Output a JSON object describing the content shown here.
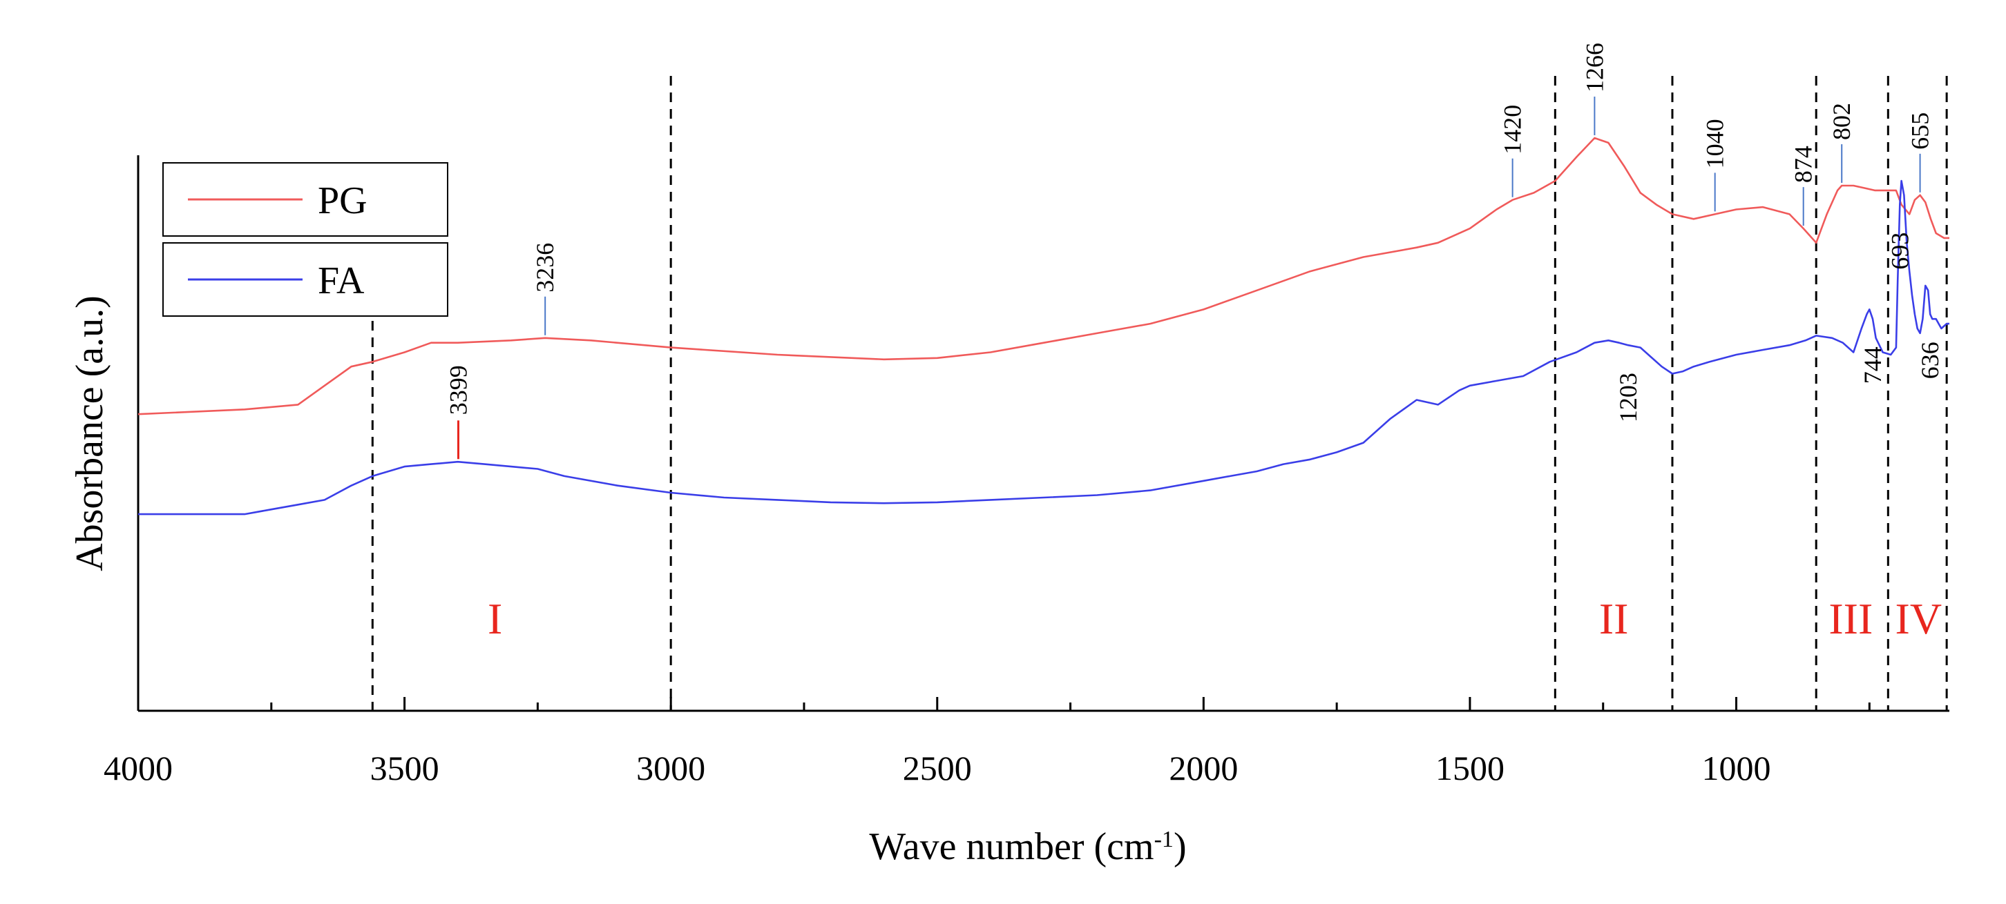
{
  "chart_data": {
    "type": "line",
    "title": "",
    "xlabel": "Wave number (cm-1)",
    "xlabel_main": "Wave number (cm",
    "xlabel_sup": "-1",
    "xlabel_close": ")",
    "ylabel": "Absorbance (a.u.)",
    "xlim": [
      4000,
      600
    ],
    "ylim": [
      0,
      100
    ],
    "x_ticks": [
      4000,
      3500,
      3000,
      2500,
      2000,
      1500,
      1000
    ],
    "x_tick_labels": [
      "4000",
      "3500",
      "3000",
      "2500",
      "2000",
      "1500",
      "1000"
    ],
    "y_ticks_shown": false,
    "legend": {
      "position": "top-left",
      "entries": [
        "PG",
        "FA"
      ]
    },
    "series": [
      {
        "name": "PG",
        "color": "#f05a5a",
        "x": [
          4000,
          3800,
          3700,
          3650,
          3600,
          3560,
          3500,
          3450,
          3400,
          3300,
          3236,
          3150,
          3000,
          2800,
          2600,
          2500,
          2400,
          2300,
          2200,
          2100,
          2000,
          1900,
          1800,
          1700,
          1600,
          1560,
          1500,
          1450,
          1420,
          1380,
          1340,
          1300,
          1266,
          1240,
          1210,
          1180,
          1150,
          1120,
          1080,
          1040,
          1000,
          950,
          900,
          874,
          850,
          830,
          810,
          802,
          780,
          760,
          740,
          720,
          700,
          690,
          675,
          665,
          655,
          645,
          635,
          625,
          610,
          600
        ],
        "y": [
          42,
          43,
          44,
          48,
          52,
          53,
          55,
          57,
          57,
          57.5,
          58,
          57.5,
          56,
          54.5,
          53.5,
          53.8,
          55,
          57,
          59,
          61,
          64,
          68,
          72,
          75,
          77,
          78,
          81,
          85,
          87,
          88.5,
          91,
          96,
          100,
          99,
          94,
          88.5,
          86,
          84,
          83,
          84,
          85,
          85.5,
          84,
          81,
          78,
          84,
          89,
          90,
          90,
          89.5,
          89,
          89,
          89,
          86,
          84,
          87,
          88,
          86.5,
          83,
          80,
          79,
          79
        ]
      },
      {
        "name": "FA",
        "color": "#3a3ee8",
        "x": [
          4000,
          3900,
          3800,
          3750,
          3700,
          3650,
          3600,
          3560,
          3500,
          3450,
          3400,
          3350,
          3300,
          3250,
          3200,
          3100,
          3000,
          2900,
          2800,
          2700,
          2600,
          2500,
          2400,
          2300,
          2200,
          2100,
          2000,
          1950,
          1900,
          1850,
          1800,
          1750,
          1700,
          1650,
          1600,
          1560,
          1520,
          1500,
          1450,
          1400,
          1350,
          1300,
          1266,
          1240,
          1220,
          1203,
          1180,
          1160,
          1140,
          1120,
          1100,
          1080,
          1050,
          1000,
          950,
          900,
          870,
          850,
          820,
          800,
          780,
          765,
          755,
          750,
          744,
          738,
          725,
          710,
          700,
          697,
          693,
          690,
          685,
          680,
          675,
          670,
          665,
          660,
          655,
          650,
          645,
          640,
          636,
          632,
          625,
          615,
          605,
          600
        ],
        "y": [
          21,
          21,
          21,
          22,
          23,
          24,
          27,
          29,
          31,
          31.5,
          32,
          31.5,
          31,
          30.5,
          29,
          27,
          25.5,
          24.5,
          24,
          23.5,
          23.3,
          23.5,
          24,
          24.5,
          25,
          26,
          28,
          29,
          30,
          31.5,
          32.5,
          34,
          36,
          41,
          45,
          44,
          47,
          48,
          49,
          50,
          53,
          55,
          57,
          57.5,
          57,
          56.5,
          56,
          54,
          52,
          50.5,
          51,
          52,
          53,
          54.5,
          55.5,
          56.5,
          57.5,
          58.5,
          58,
          57,
          55,
          60,
          63,
          64,
          62,
          58,
          55,
          54.5,
          56,
          70,
          86,
          91,
          88,
          78,
          72,
          67,
          63,
          60,
          59,
          62,
          69,
          68,
          63,
          62,
          62,
          60,
          61,
          61
        ]
      }
    ],
    "annotations": {
      "pg_peaks": [
        "3236",
        "1420",
        "1266",
        "1040",
        "874",
        "802",
        "655"
      ],
      "fa_peaks": [
        "3399",
        "1203",
        "744",
        "693",
        "636"
      ],
      "regions": [
        "I",
        "II",
        "III",
        "IV"
      ],
      "dashed_lines_at": [
        3560,
        3000,
        1340,
        1120,
        850,
        715,
        605
      ]
    }
  },
  "pg_label_positions": [
    {
      "label": "3236",
      "x": 3236
    },
    {
      "label": "1420",
      "x": 1420
    },
    {
      "label": "1266",
      "x": 1266
    },
    {
      "label": "1040",
      "x": 1040
    },
    {
      "label": "874",
      "x": 874
    },
    {
      "label": "802",
      "x": 802
    },
    {
      "label": "655",
      "x": 655
    }
  ],
  "fa_label_positions": [
    {
      "label": "3399",
      "x": 3399
    },
    {
      "label": "1203",
      "x": 1203
    },
    {
      "label": "744",
      "x": 744
    },
    {
      "label": "693",
      "x": 693
    },
    {
      "label": "636",
      "x": 636
    }
  ],
  "region_positions": [
    {
      "label": "I",
      "x": 3330
    },
    {
      "label": "II",
      "x": 1230
    },
    {
      "label": "III",
      "x": 785
    },
    {
      "label": "IV",
      "x": 658
    }
  ]
}
